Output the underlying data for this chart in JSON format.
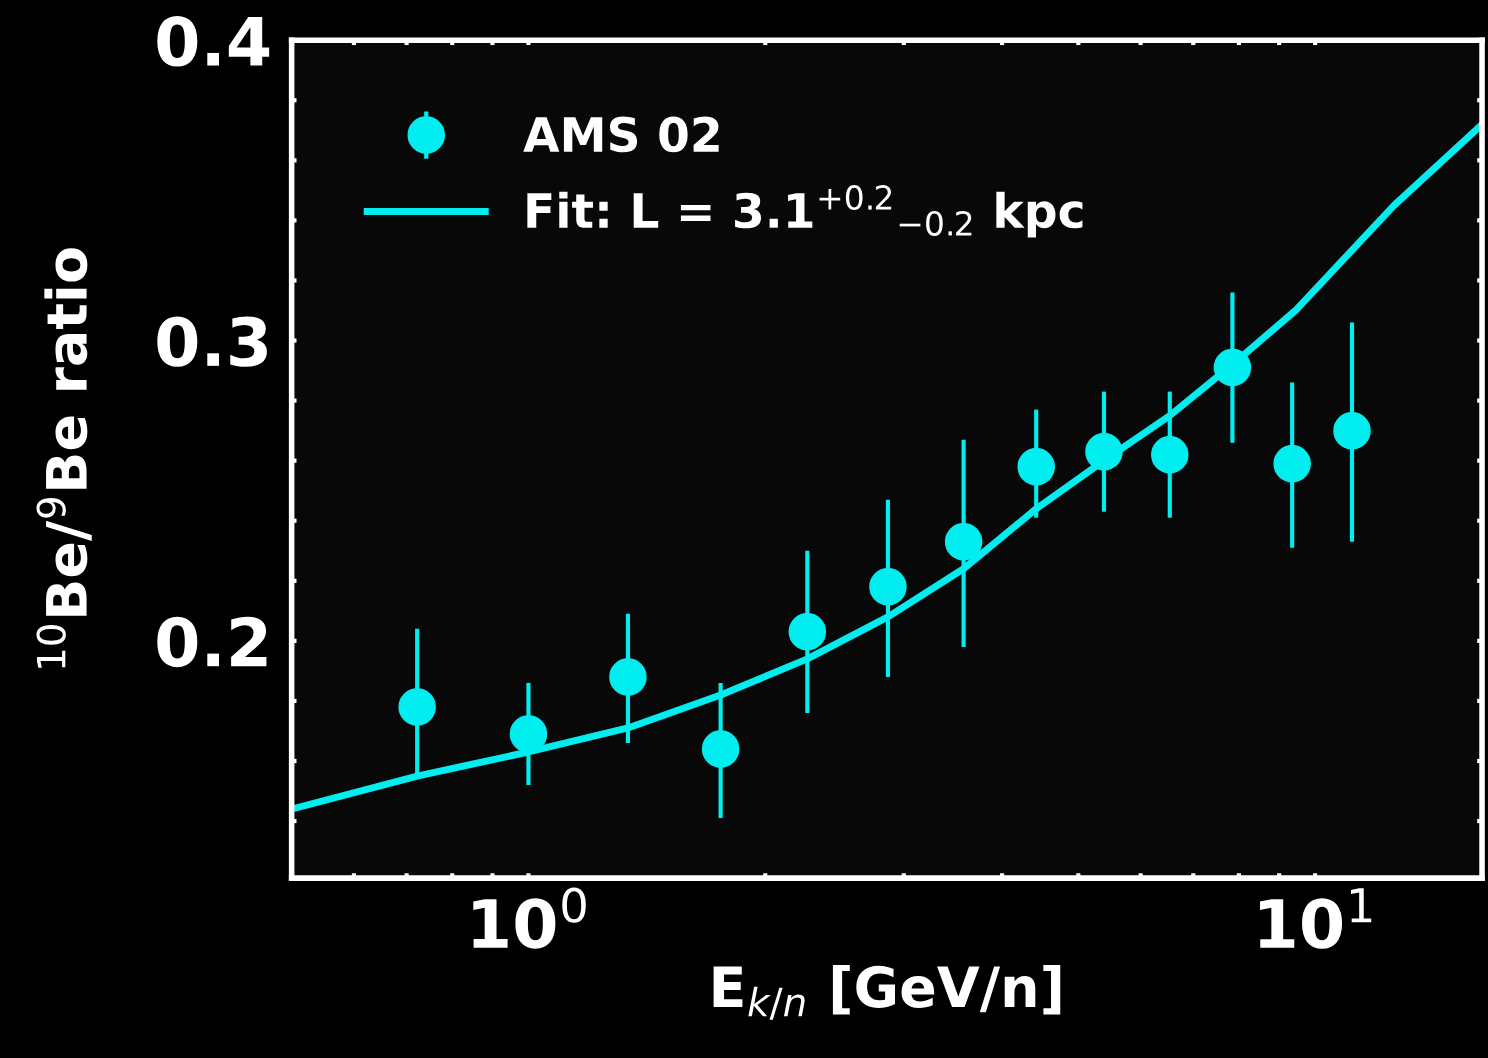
{
  "chart_data": {
    "type": "scatter",
    "xlabel": "E$_{k/n}$ [GeV/n]",
    "ylabel": "$^{10}$Be/$^{9}$Be ratio",
    "log": "x",
    "xlim": [
      0.5,
      16.3
    ],
    "ylim": [
      0.121,
      0.4
    ],
    "xticks": [
      {
        "value": 0.6,
        "label": null
      },
      {
        "value": 0.7,
        "label": null
      },
      {
        "value": 0.8,
        "label": null
      },
      {
        "value": 0.9,
        "label": null
      },
      {
        "value": 1,
        "label": "10$^{0}$"
      },
      {
        "value": 2,
        "label": null
      },
      {
        "value": 3,
        "label": null
      },
      {
        "value": 4,
        "label": null
      },
      {
        "value": 5,
        "label": null
      },
      {
        "value": 6,
        "label": null
      },
      {
        "value": 7,
        "label": null
      },
      {
        "value": 8,
        "label": null
      },
      {
        "value": 9,
        "label": null
      },
      {
        "value": 10,
        "label": "10$^{1}$"
      }
    ],
    "yticks": [
      {
        "value": 0.14,
        "label": null
      },
      {
        "value": 0.16,
        "label": null
      },
      {
        "value": 0.18,
        "label": null
      },
      0.2,
      {
        "value": 0.22,
        "label": null
      },
      {
        "value": 0.24,
        "label": null
      },
      {
        "value": 0.26,
        "label": null
      },
      {
        "value": 0.28,
        "label": null
      },
      0.3,
      {
        "value": 0.32,
        "label": null
      },
      {
        "value": 0.34,
        "label": null
      },
      {
        "value": 0.36,
        "label": null
      },
      {
        "value": 0.38,
        "label": null
      },
      0.4
    ],
    "grid": false,
    "legend": "top left",
    "series": [
      {
        "name": "AMS 02",
        "color": "#00eef0",
        "marker": "circle",
        "x": [
          0.722,
          1.0,
          1.338,
          1.755,
          2.262,
          2.864,
          3.574,
          4.42,
          5.39,
          6.535,
          7.85,
          9.35,
          11.14
        ],
        "values": [
          0.178,
          0.169,
          0.188,
          0.164,
          0.203,
          0.218,
          0.233,
          0.258,
          0.263,
          0.262,
          0.291,
          0.259,
          0.27
        ],
        "errors": [
          [
            0.155,
            0.204
          ],
          [
            0.152,
            0.186
          ],
          [
            0.166,
            0.209
          ],
          [
            0.141,
            0.186
          ],
          [
            0.176,
            0.23
          ],
          [
            0.188,
            0.247
          ],
          [
            0.198,
            0.267
          ],
          [
            0.241,
            0.277
          ],
          [
            0.243,
            0.283
          ],
          [
            0.241,
            0.283
          ],
          [
            0.266,
            0.316
          ],
          [
            0.231,
            0.286
          ],
          [
            0.233,
            0.306
          ]
        ]
      },
      {
        "name": "Fit: L = 3.1$^{+0.2}$$_{−0.2}$ kpc",
        "type": "line",
        "color": "#00eef0",
        "line_style": "solid",
        "x": [
          0.5,
          0.722,
          1.0,
          1.338,
          1.755,
          2.262,
          2.864,
          3.574,
          4.42,
          5.39,
          6.535,
          7.85,
          9.44,
          12.6,
          16.3
        ],
        "values": [
          0.144,
          0.155,
          0.163,
          0.171,
          0.182,
          0.194,
          0.208,
          0.224,
          0.244,
          0.26,
          0.275,
          0.292,
          0.31,
          0.345,
          0.372
        ]
      }
    ]
  }
}
